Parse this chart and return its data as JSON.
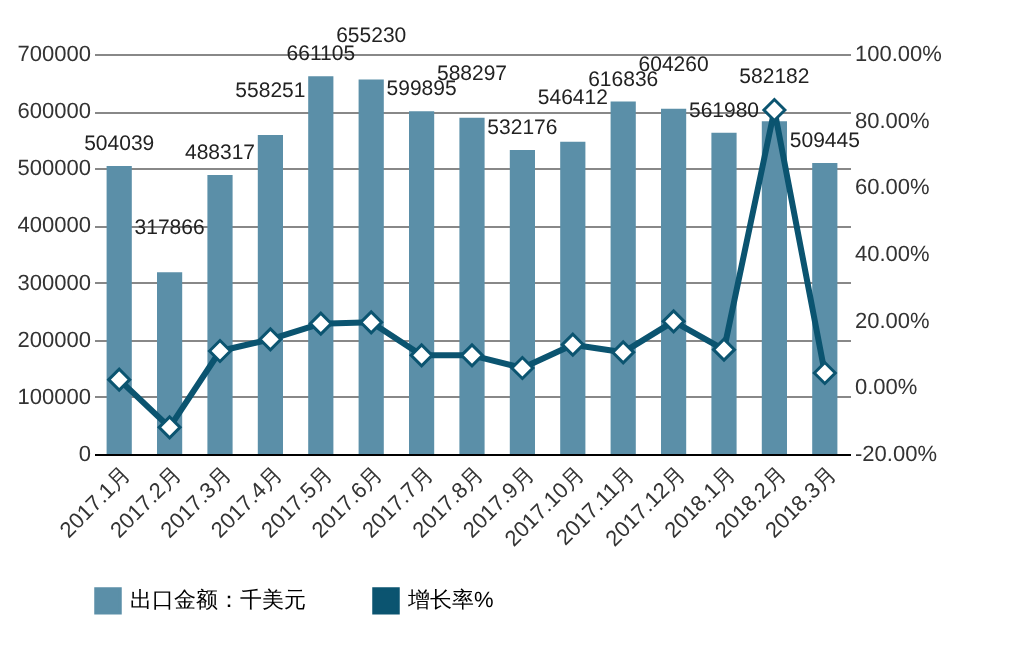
{
  "chart_data": {
    "type": "bar",
    "categories": [
      "2017.1月",
      "2017.2月",
      "2017.3月",
      "2017.4月",
      "2017.5月",
      "2017.6月",
      "2017.7月",
      "2017.8月",
      "2017.9月",
      "2017.10月",
      "2017.11月",
      "2017.12月",
      "2018.1月",
      "2018.2月",
      "2018.3月"
    ],
    "series": [
      {
        "name": "出口金额：千美元",
        "color": "#5b8fa8",
        "values": [
          504039,
          317866,
          488317,
          558251,
          661105,
          655230,
          599895,
          588297,
          532176,
          546412,
          616836,
          604260,
          561980,
          582182,
          509445
        ],
        "value_labels": [
          "504039",
          "317866",
          "488317",
          "558251",
          "661105",
          "655230",
          "599895",
          "588297",
          "532176",
          "546412",
          "616836",
          "604260",
          "561980",
          "582182",
          "509445"
        ]
      },
      {
        "name": "增长率%",
        "type": "line",
        "axis": "y2",
        "color": "#0b5470",
        "values": [
          2.3,
          -12,
          10.9,
          14.4,
          19.1,
          19.5,
          9.6,
          9.6,
          5.8,
          12.8,
          10.5,
          19.8,
          11.3,
          83.2,
          4.3
        ]
      }
    ],
    "ylim": [
      0,
      700000
    ],
    "yticks": [
      0,
      100000,
      200000,
      300000,
      400000,
      500000,
      600000,
      700000
    ],
    "y2lim": [
      -20,
      100
    ],
    "y2ticks": [
      {
        "value": -20,
        "label": "-20.00%"
      },
      {
        "value": 0,
        "label": "0.00%"
      },
      {
        "value": 20,
        "label": "20.00%"
      },
      {
        "value": 40,
        "label": "40.00%"
      },
      {
        "value": 60,
        "label": "60.00%"
      },
      {
        "value": 80,
        "label": "80.00%"
      },
      {
        "value": 100,
        "label": "100.00%"
      }
    ],
    "grid": "y",
    "legend": "bottom",
    "marker": "diamond",
    "line_style": "solid"
  }
}
